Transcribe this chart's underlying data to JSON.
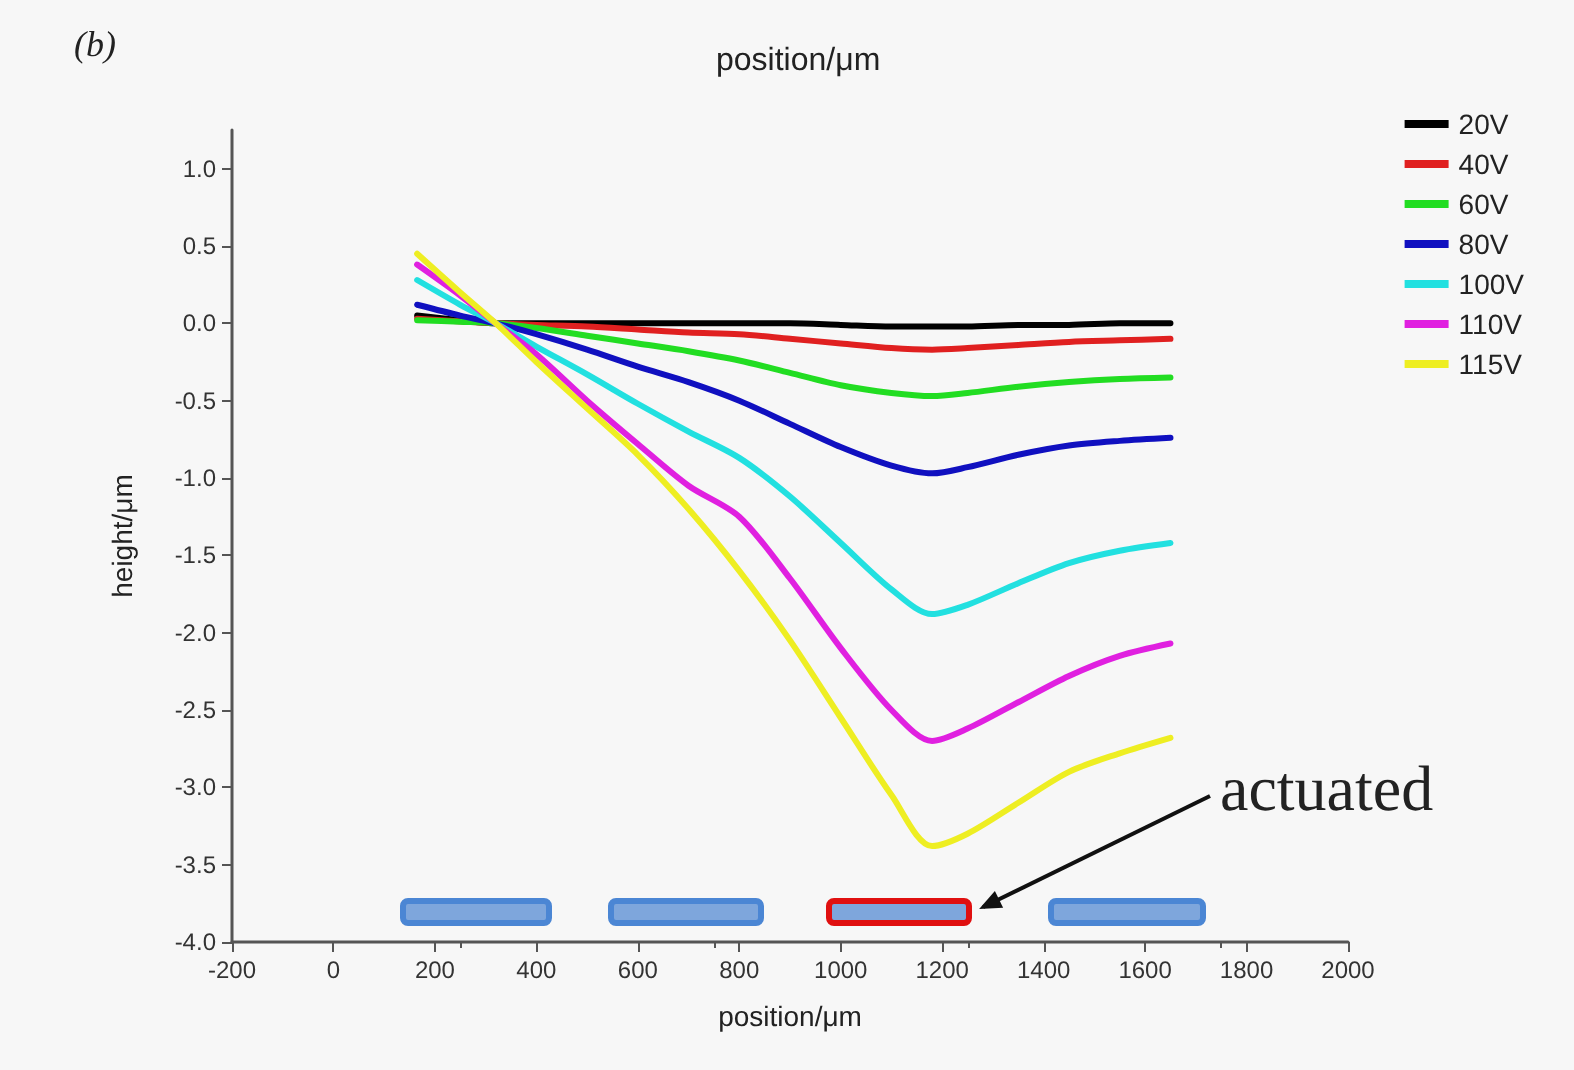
{
  "chart_data": {
    "type": "line",
    "xlabel": "position/μm",
    "ylabel": "height/μm",
    "annotations": [
      "(b)",
      "position/μm",
      "actuated"
    ],
    "x": [
      165,
      250,
      320,
      400,
      500,
      600,
      700,
      800,
      900,
      1000,
      1100,
      1180,
      1250,
      1350,
      1450,
      1550,
      1650
    ],
    "series": [
      {
        "name": "20V",
        "color": "#000000",
        "values": [
          0.05,
          0.02,
          0,
          0,
          0,
          0,
          0,
          0,
          0,
          -0.01,
          -0.02,
          -0.02,
          -0.02,
          -0.01,
          -0.01,
          0,
          0
        ]
      },
      {
        "name": "40V",
        "color": "#e02020",
        "values": [
          0.03,
          null,
          0,
          -0.01,
          -0.02,
          -0.04,
          -0.06,
          -0.07,
          -0.1,
          -0.13,
          -0.16,
          -0.17,
          -0.16,
          -0.14,
          -0.12,
          -0.11,
          -0.1
        ]
      },
      {
        "name": "60V",
        "color": "#22dd22",
        "values": [
          0.02,
          0.01,
          0,
          -0.03,
          -0.08,
          -0.13,
          -0.18,
          -0.24,
          -0.32,
          -0.4,
          -0.45,
          -0.47,
          -0.45,
          -0.41,
          -0.38,
          -0.36,
          -0.35
        ]
      },
      {
        "name": "80V",
        "color": "#1010c0",
        "values": [
          0.12,
          0.05,
          0,
          -0.07,
          -0.17,
          -0.28,
          -0.38,
          -0.5,
          -0.65,
          -0.8,
          -0.92,
          -0.97,
          -0.93,
          -0.85,
          -0.79,
          -0.76,
          -0.74
        ]
      },
      {
        "name": "100V",
        "color": "#22e0e0",
        "values": [
          0.28,
          0.12,
          0,
          -0.15,
          -0.33,
          -0.52,
          -0.7,
          -0.87,
          -1.12,
          -1.42,
          -1.72,
          -1.88,
          -1.82,
          -1.68,
          -1.55,
          -1.47,
          -1.42
        ]
      },
      {
        "name": "110V",
        "color": "#e020e0",
        "values": [
          0.38,
          0.18,
          0,
          -0.2,
          -0.5,
          -0.78,
          -1.05,
          -1.25,
          -1.65,
          -2.1,
          -2.5,
          -2.7,
          -2.62,
          -2.45,
          -2.28,
          -2.15,
          -2.07
        ]
      },
      {
        "name": "115V",
        "color": "#eeee22",
        "values": [
          0.45,
          0.2,
          0,
          -0.25,
          -0.55,
          -0.85,
          -1.2,
          -1.6,
          -2.05,
          -2.55,
          -3.05,
          -3.38,
          -3.3,
          -3.1,
          -2.9,
          -2.78,
          -2.68
        ]
      }
    ],
    "xlim": [
      -200,
      2000
    ],
    "xticks": [
      -200,
      0,
      200,
      400,
      600,
      800,
      1000,
      1200,
      1400,
      1600,
      1800,
      2000
    ],
    "ylim": [
      -4,
      1.25
    ],
    "yticks": [
      {
        "value": -4,
        "label": "-4.0"
      },
      {
        "value": -3.5,
        "label": "-3.5"
      },
      {
        "value": -3,
        "label": "-3.0"
      },
      {
        "value": -2.5,
        "label": "-2.5"
      },
      {
        "value": -2,
        "label": "-2.0"
      },
      {
        "value": -1.5,
        "label": "-1.5"
      },
      {
        "value": -1,
        "label": "-1.0"
      },
      {
        "value": -0.5,
        "label": "-0.5"
      },
      {
        "value": 0,
        "label": "0.0"
      },
      {
        "value": 0.5,
        "label": "0.5"
      },
      {
        "value": 1,
        "label": "1.0"
      }
    ],
    "grid": false,
    "legend": "top right",
    "marker": "none",
    "line_style": "solid"
  }
}
